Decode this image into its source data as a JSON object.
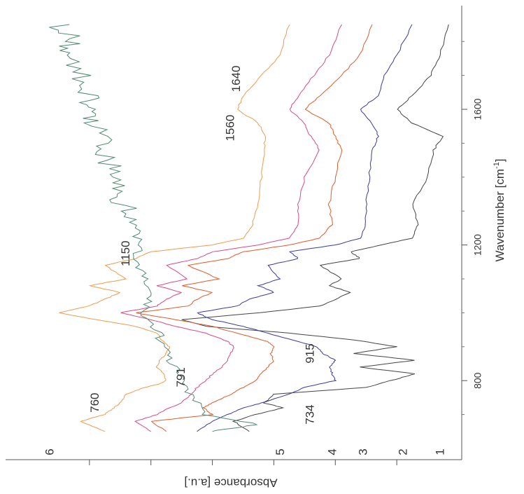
{
  "chart_data": {
    "type": "line",
    "orientation": "rotated-90-clockwise",
    "xlabel": "Wavenumber [cm",
    "xlabel_sup": "-1",
    "xlabel_tail": "]",
    "ylabel": "Absorbance [a.u.]",
    "xlim": [
      1850,
      600
    ],
    "x_ticks": [
      800,
      1200,
      1600
    ],
    "grid": false,
    "legend": "none",
    "series": [
      {
        "num": "1",
        "color": "#444444",
        "points": [
          [
            1850,
            0.3
          ],
          [
            1760,
            0.6
          ],
          [
            1700,
            0.9
          ],
          [
            1640,
            1.5
          ],
          [
            1600,
            2.0
          ],
          [
            1560,
            1.5
          ],
          [
            1520,
            0.5
          ],
          [
            1480,
            0.8
          ],
          [
            1400,
            1.0
          ],
          [
            1320,
            1.5
          ],
          [
            1260,
            1.3
          ],
          [
            1220,
            1.5
          ],
          [
            1200,
            2.5
          ],
          [
            1180,
            3.5
          ],
          [
            1160,
            3.2
          ],
          [
            1140,
            4.5
          ],
          [
            1100,
            3.8
          ],
          [
            1080,
            4.2
          ],
          [
            1060,
            3.5
          ],
          [
            1040,
            4.0
          ],
          [
            1020,
            4.5
          ],
          [
            1000,
            6.5
          ],
          [
            980,
            9.0
          ],
          [
            960,
            8.2
          ],
          [
            940,
            5.5
          ],
          [
            920,
            3.4
          ],
          [
            900,
            2.0
          ],
          [
            880,
            3.4
          ],
          [
            860,
            1.4
          ],
          [
            840,
            3.2
          ],
          [
            820,
            1.4
          ],
          [
            800,
            2.2
          ],
          [
            780,
            3.0
          ],
          [
            760,
            6.0
          ],
          [
            734,
            6.3
          ],
          [
            720,
            5.7
          ],
          [
            700,
            6.6
          ],
          [
            680,
            7.3
          ],
          [
            650,
            6.8
          ]
        ]
      },
      {
        "num": "2",
        "color": "#3a3aa0",
        "points": [
          [
            1850,
            1.5
          ],
          [
            1760,
            2.0
          ],
          [
            1700,
            2.4
          ],
          [
            1640,
            2.6
          ],
          [
            1600,
            3.2
          ],
          [
            1560,
            2.8
          ],
          [
            1520,
            2.6
          ],
          [
            1480,
            2.8
          ],
          [
            1400,
            2.9
          ],
          [
            1320,
            3.0
          ],
          [
            1260,
            3.0
          ],
          [
            1220,
            3.2
          ],
          [
            1200,
            4.0
          ],
          [
            1180,
            5.5
          ],
          [
            1160,
            5.2
          ],
          [
            1140,
            6.2
          ],
          [
            1100,
            5.8
          ],
          [
            1080,
            6.5
          ],
          [
            1060,
            6.0
          ],
          [
            1040,
            6.8
          ],
          [
            1020,
            7.2
          ],
          [
            1000,
            8.5
          ],
          [
            980,
            8.0
          ],
          [
            960,
            7.0
          ],
          [
            940,
            6.2
          ],
          [
            915,
            5.2
          ],
          [
            900,
            4.6
          ],
          [
            880,
            4.4
          ],
          [
            860,
            4.0
          ],
          [
            840,
            4.2
          ],
          [
            820,
            4.1
          ],
          [
            800,
            4.0
          ],
          [
            780,
            5.0
          ],
          [
            760,
            5.5
          ],
          [
            734,
            6.4
          ],
          [
            720,
            7.0
          ],
          [
            700,
            7.5
          ],
          [
            680,
            8.0
          ],
          [
            650,
            8.5
          ]
        ]
      },
      {
        "num": "3",
        "color": "#e05a2a",
        "points": [
          [
            1850,
            2.8
          ],
          [
            1760,
            3.2
          ],
          [
            1700,
            3.8
          ],
          [
            1640,
            4.5
          ],
          [
            1600,
            5.0
          ],
          [
            1560,
            4.2
          ],
          [
            1520,
            4.0
          ],
          [
            1480,
            3.8
          ],
          [
            1400,
            4.0
          ],
          [
            1320,
            4.2
          ],
          [
            1260,
            4.1
          ],
          [
            1220,
            4.5
          ],
          [
            1200,
            5.5
          ],
          [
            1180,
            7.0
          ],
          [
            1160,
            7.5
          ],
          [
            1140,
            8.8
          ],
          [
            1100,
            7.8
          ],
          [
            1080,
            9.0
          ],
          [
            1060,
            8.0
          ],
          [
            1040,
            8.5
          ],
          [
            1020,
            8.8
          ],
          [
            1000,
            10.5
          ],
          [
            980,
            9.2
          ],
          [
            960,
            8.0
          ],
          [
            940,
            7.2
          ],
          [
            915,
            6.2
          ],
          [
            900,
            6.0
          ],
          [
            880,
            6.1
          ],
          [
            860,
            6.0
          ],
          [
            840,
            6.2
          ],
          [
            820,
            6.4
          ],
          [
            800,
            6.6
          ],
          [
            780,
            7.0
          ],
          [
            760,
            7.4
          ],
          [
            734,
            8.0
          ],
          [
            720,
            8.3
          ],
          [
            700,
            8.0
          ],
          [
            680,
            10.0
          ],
          [
            650,
            9.5
          ]
        ]
      },
      {
        "num": "4",
        "color": "#d84a86",
        "points": [
          [
            1850,
            3.8
          ],
          [
            1760,
            4.2
          ],
          [
            1700,
            4.7
          ],
          [
            1640,
            5.2
          ],
          [
            1600,
            5.5
          ],
          [
            1560,
            5.0
          ],
          [
            1520,
            4.8
          ],
          [
            1480,
            4.5
          ],
          [
            1400,
            5.0
          ],
          [
            1320,
            5.2
          ],
          [
            1260,
            5.2
          ],
          [
            1220,
            5.5
          ],
          [
            1200,
            6.5
          ],
          [
            1180,
            8.0
          ],
          [
            1160,
            8.5
          ],
          [
            1140,
            9.5
          ],
          [
            1100,
            8.8
          ],
          [
            1080,
            9.8
          ],
          [
            1060,
            9.0
          ],
          [
            1040,
            9.5
          ],
          [
            1020,
            9.8
          ],
          [
            1000,
            11.0
          ],
          [
            980,
            10.0
          ],
          [
            960,
            9.2
          ],
          [
            940,
            8.2
          ],
          [
            915,
            7.5
          ],
          [
            900,
            7.3
          ],
          [
            880,
            7.4
          ],
          [
            860,
            7.5
          ],
          [
            840,
            7.7
          ],
          [
            820,
            8.0
          ],
          [
            800,
            8.2
          ],
          [
            780,
            8.5
          ],
          [
            760,
            8.7
          ],
          [
            734,
            9.0
          ],
          [
            720,
            9.4
          ],
          [
            700,
            9.8
          ],
          [
            680,
            10.5
          ],
          [
            650,
            10.0
          ]
        ]
      },
      {
        "num": "5",
        "color": "#f29a4e",
        "points": [
          [
            1850,
            5.5
          ],
          [
            1760,
            5.8
          ],
          [
            1700,
            6.4
          ],
          [
            1640,
            7.0
          ],
          [
            1600,
            7.2
          ],
          [
            1560,
            6.5
          ],
          [
            1520,
            6.3
          ],
          [
            1480,
            6.3
          ],
          [
            1400,
            6.4
          ],
          [
            1320,
            6.5
          ],
          [
            1260,
            6.7
          ],
          [
            1220,
            7.0
          ],
          [
            1200,
            8.0
          ],
          [
            1180,
            10.0
          ],
          [
            1160,
            10.5
          ],
          [
            1140,
            11.5
          ],
          [
            1100,
            10.8
          ],
          [
            1080,
            12.0
          ],
          [
            1060,
            11.0
          ],
          [
            1040,
            11.5
          ],
          [
            1020,
            12.0
          ],
          [
            1000,
            13.0
          ],
          [
            980,
            11.8
          ],
          [
            960,
            10.5
          ],
          [
            940,
            9.8
          ],
          [
            915,
            9.6
          ],
          [
            900,
            9.4
          ],
          [
            880,
            9.5
          ],
          [
            860,
            9.7
          ],
          [
            840,
            9.8
          ],
          [
            820,
            9.6
          ],
          [
            800,
            9.5
          ],
          [
            791,
            9.7
          ],
          [
            780,
            10.2
          ],
          [
            760,
            10.8
          ],
          [
            734,
            11.0
          ],
          [
            720,
            11.2
          ],
          [
            700,
            11.5
          ],
          [
            680,
            12.3
          ],
          [
            650,
            11.5
          ]
        ]
      },
      {
        "num": "6",
        "color": "#4f8a72",
        "points": [
          [
            1850,
            13.0
          ],
          [
            1800,
            12.5
          ],
          [
            1760,
            12.8
          ],
          [
            1700,
            12.3
          ],
          [
            1640,
            12.0
          ],
          [
            1600,
            12.2
          ],
          [
            1560,
            11.8
          ],
          [
            1500,
            11.5
          ],
          [
            1450,
            11.4
          ],
          [
            1400,
            11.0
          ],
          [
            1350,
            11.1
          ],
          [
            1300,
            10.8
          ],
          [
            1250,
            10.5
          ],
          [
            1200,
            10.4
          ],
          [
            1150,
            10.5
          ],
          [
            1100,
            10.2
          ],
          [
            1050,
            10.0
          ],
          [
            1000,
            10.3
          ],
          [
            950,
            9.8
          ],
          [
            900,
            9.6
          ],
          [
            850,
            9.3
          ],
          [
            800,
            9.0
          ],
          [
            750,
            8.7
          ],
          [
            700,
            8.2
          ],
          [
            670,
            6.5
          ],
          [
            650,
            8.0
          ]
        ]
      }
    ],
    "annotations": [
      {
        "text": "1640",
        "x": 1690,
        "y": 7.2
      },
      {
        "text": "1560",
        "x": 1545,
        "y": 7.4
      },
      {
        "text": "1150",
        "x": 1175,
        "y": 10.8
      },
      {
        "text": "791",
        "x": 810,
        "y": 9.0
      },
      {
        "text": "760",
        "x": 735,
        "y": 11.8
      },
      {
        "text": "915",
        "x": 880,
        "y": 4.8
      },
      {
        "text": "734",
        "x": 700,
        "y": 4.8
      }
    ]
  }
}
